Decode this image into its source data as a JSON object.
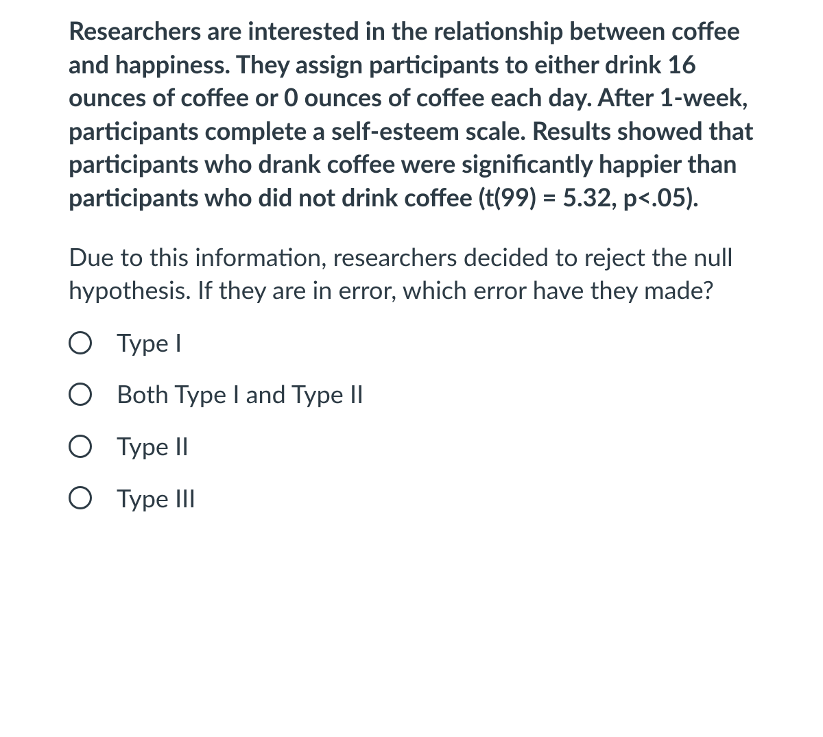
{
  "question": {
    "stem": "Researchers are interested in the relationship between coffee and happiness. They assign participants to either drink 16 ounces of coffee or 0 ounces of coffee each day. After 1-week, participants complete a self-esteem scale. Results showed that participants who drank coffee were significantly happier than participants who did not drink coffee (t(99) = 5.32, p<.05).",
    "prompt": "Due to this information, researchers decided to reject the null hypothesis. If they are in error, which error have they made?",
    "options": [
      {
        "label": "Type I",
        "selected": false
      },
      {
        "label": "Both Type I and Type II",
        "selected": false
      },
      {
        "label": "Type II",
        "selected": false
      },
      {
        "label": "Type III",
        "selected": false
      }
    ]
  },
  "style": {
    "text_color": "#2d3b45",
    "background_color": "#ffffff",
    "stem_fontsize": 36,
    "stem_fontweight": 700,
    "prompt_fontsize": 36,
    "prompt_fontweight": 400,
    "option_fontsize": 36,
    "radio_diameter": 34,
    "radio_border_width": 3,
    "radio_border_color": "#2d3b45"
  }
}
